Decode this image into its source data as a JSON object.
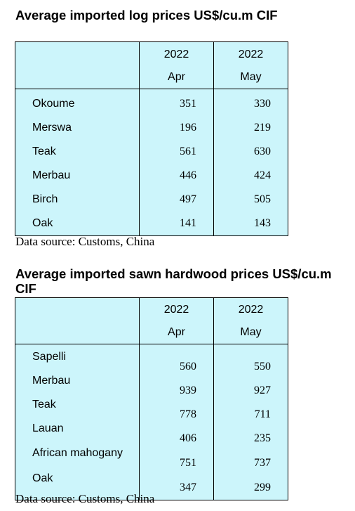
{
  "table1": {
    "title": "Average imported log prices US$/cu.m CIF",
    "col1": {
      "year": "2022",
      "month": "Apr"
    },
    "col2": {
      "year": "2022",
      "month": "May"
    },
    "rows": [
      {
        "name": "Okoume",
        "apr": "351",
        "may": "330"
      },
      {
        "name": "Merswa",
        "apr": "196",
        "may": "219"
      },
      {
        "name": "Teak",
        "apr": "561",
        "may": "630"
      },
      {
        "name": "Merbau",
        "apr": "446",
        "may": "424"
      },
      {
        "name": "Birch",
        "apr": "497",
        "may": "505"
      },
      {
        "name": "Oak",
        "apr": "141",
        "may": "143"
      }
    ],
    "source": "Data source: Customs, China"
  },
  "table2": {
    "title_line1": "Average imported sawn hardwood prices US$/cu.m",
    "title_line2": "CIF",
    "col1": {
      "year": "2022",
      "month": "Apr"
    },
    "col2": {
      "year": "2022",
      "month": "May"
    },
    "rows": [
      {
        "name": "Sapelli",
        "apr": "560",
        "may": "550"
      },
      {
        "name": "Merbau",
        "apr": "939",
        "may": "927"
      },
      {
        "name": "Teak",
        "apr": "778",
        "may": "711"
      },
      {
        "name": "Lauan",
        "apr": "406",
        "may": "235"
      },
      {
        "name": "African mahogany",
        "apr": "751",
        "may": "737"
      },
      {
        "name": "Oak",
        "apr": "347",
        "may": "299"
      }
    ],
    "source": "Data source: Customs, China"
  }
}
